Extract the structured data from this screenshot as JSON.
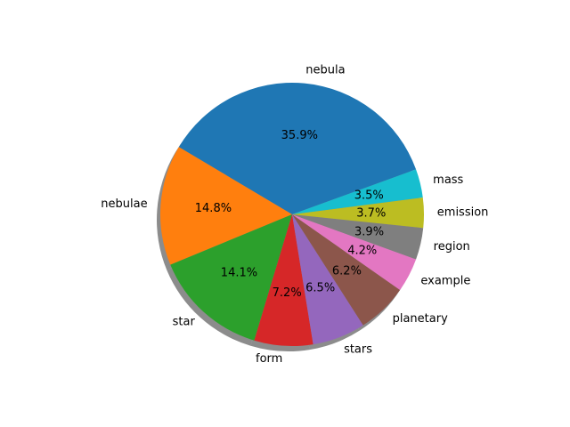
{
  "chart_data": {
    "type": "pie",
    "title": "",
    "shadow": true,
    "start_angle_deg": 20,
    "direction": "counterclockwise",
    "slices": [
      {
        "label": "nebula",
        "value": 35.9,
        "pct_label": "35.9%",
        "color": "#1f77b4"
      },
      {
        "label": "nebulae",
        "value": 14.8,
        "pct_label": "14.8%",
        "color": "#ff7f0e"
      },
      {
        "label": "star",
        "value": 14.1,
        "pct_label": "14.1%",
        "color": "#2ca02c"
      },
      {
        "label": "form",
        "value": 7.2,
        "pct_label": "7.2%",
        "color": "#d62728"
      },
      {
        "label": "stars",
        "value": 6.5,
        "pct_label": "6.5%",
        "color": "#9467bd"
      },
      {
        "label": "planetary",
        "value": 6.2,
        "pct_label": "6.2%",
        "color": "#8c564b"
      },
      {
        "label": "example",
        "value": 4.2,
        "pct_label": "4.2%",
        "color": "#e377c2"
      },
      {
        "label": "region",
        "value": 3.9,
        "pct_label": "3.9%",
        "color": "#7f7f7f"
      },
      {
        "label": "emission",
        "value": 3.7,
        "pct_label": "3.7%",
        "color": "#bcbd22"
      },
      {
        "label": "mass",
        "value": 3.5,
        "pct_label": "3.5%",
        "color": "#17becf"
      }
    ]
  }
}
